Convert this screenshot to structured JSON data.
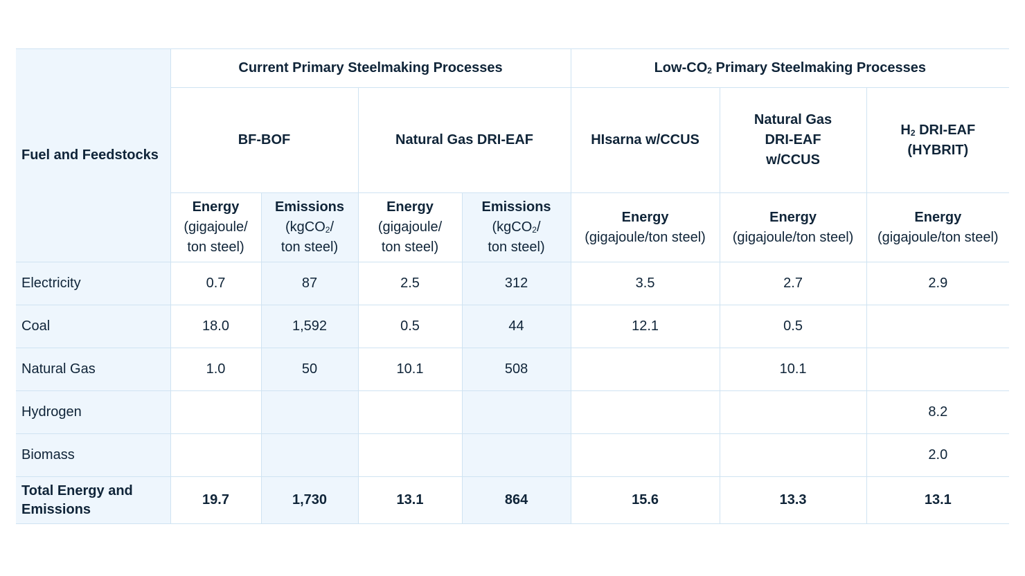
{
  "table": {
    "row_header_title": "Fuel and Feedstocks",
    "groups": [
      {
        "label_pre": "Current Primary Steelmaking Processes",
        "label_sub": "",
        "label_post": ""
      },
      {
        "label_pre": "Low-CO",
        "label_sub": "2",
        "label_post": " Primary Steelmaking Processes"
      }
    ],
    "processes": [
      {
        "pre": "BF-BOF",
        "sub": "",
        "post": ""
      },
      {
        "pre": "Natural Gas DRI-EAF",
        "sub": "",
        "post": ""
      },
      {
        "pre": "HIsarna w/CCUS",
        "sub": "",
        "post": ""
      },
      {
        "pre": "Natural Gas DRI-EAF w/CCUS",
        "sub": "",
        "post": ""
      },
      {
        "pre": "H",
        "sub": "2",
        "post": " DRI-EAF (HYBRIT)"
      }
    ],
    "metrics": {
      "energy_title": "Energy",
      "energy_unit_narrow": "(gigajoule/ ton steel)",
      "energy_unit_wide": "(gigajoule/ton steel)",
      "emissions_title": "Emissions",
      "emissions_unit_pre": "(kgCO",
      "emissions_unit_sub": "2",
      "emissions_unit_post": "/ ton steel)"
    },
    "rows": [
      {
        "label": "Electricity",
        "values": [
          "0.7",
          "87",
          "2.5",
          "312",
          "3.5",
          "2.7",
          "2.9"
        ]
      },
      {
        "label": "Coal",
        "values": [
          "18.0",
          "1,592",
          "0.5",
          "44",
          "12.1",
          "0.5",
          ""
        ]
      },
      {
        "label": "Natural Gas",
        "values": [
          "1.0",
          "50",
          "10.1",
          "508",
          "",
          "10.1",
          ""
        ]
      },
      {
        "label": "Hydrogen",
        "values": [
          "",
          "",
          "",
          "",
          "",
          "",
          "8.2"
        ]
      },
      {
        "label": "Biomass",
        "values": [
          "",
          "",
          "",
          "",
          "",
          "",
          "2.0"
        ]
      }
    ],
    "total": {
      "label": "Total Energy and Emissions",
      "values": [
        "19.7",
        "1,730",
        "13.1",
        "864",
        "15.6",
        "13.3",
        "13.1"
      ]
    }
  }
}
